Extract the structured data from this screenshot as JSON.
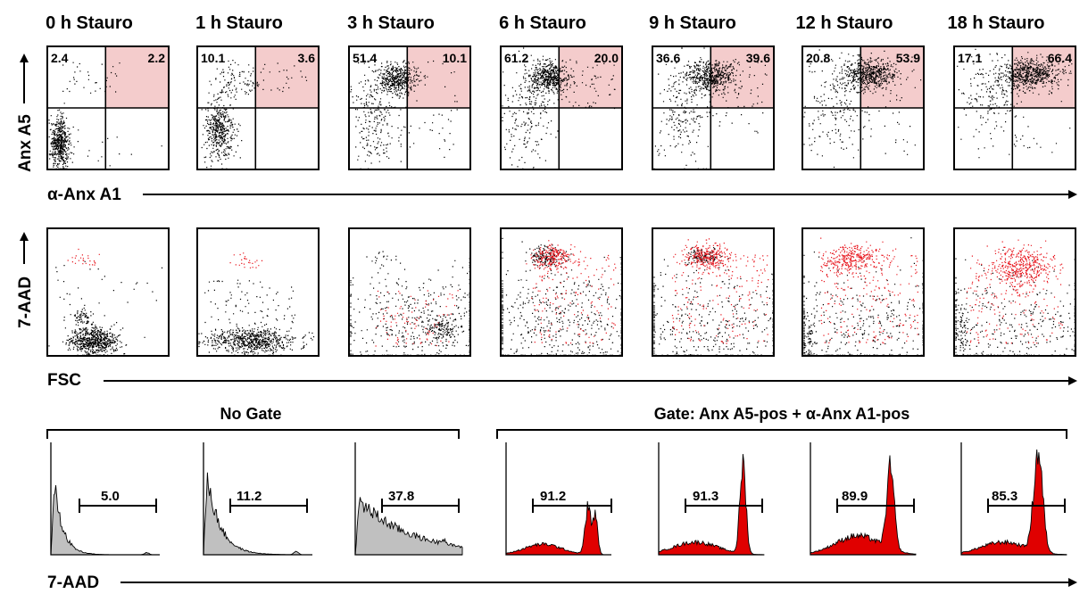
{
  "figure": {
    "column_titles": [
      "0 h Stauro",
      "1 h Stauro",
      "3 h Stauro",
      "6 h Stauro",
      "9 h Stauro",
      "12 h Stauro",
      "18 h Stauro"
    ],
    "row1": {
      "y_label": "Anx A5",
      "x_label": "α-Anx A1",
      "upper_left_percent": [
        "2.4",
        "10.1",
        "51.4",
        "61.2",
        "36.6",
        "20.8",
        "17.1"
      ],
      "upper_right_percent": [
        "2.2",
        "3.6",
        "10.1",
        "20.0",
        "39.6",
        "53.9",
        "66.4"
      ],
      "highlight_color": "#f4cccc"
    },
    "row2": {
      "y_label": "7-AAD",
      "x_label": "FSC",
      "gated_event_color": "#e8141c",
      "ungated_event_color": "#000000"
    },
    "row3": {
      "x_label": "7-AAD",
      "group_no_gate": "No Gate",
      "group_gated": "Gate: Anx A5-pos + α-Anx A1-pos",
      "marker_percent": [
        "5.0",
        "11.2",
        "37.8",
        "91.2",
        "91.3",
        "89.9",
        "85.3"
      ],
      "no_gate_fill": "#c0c0c0",
      "gated_fill": "#e00000"
    }
  }
}
